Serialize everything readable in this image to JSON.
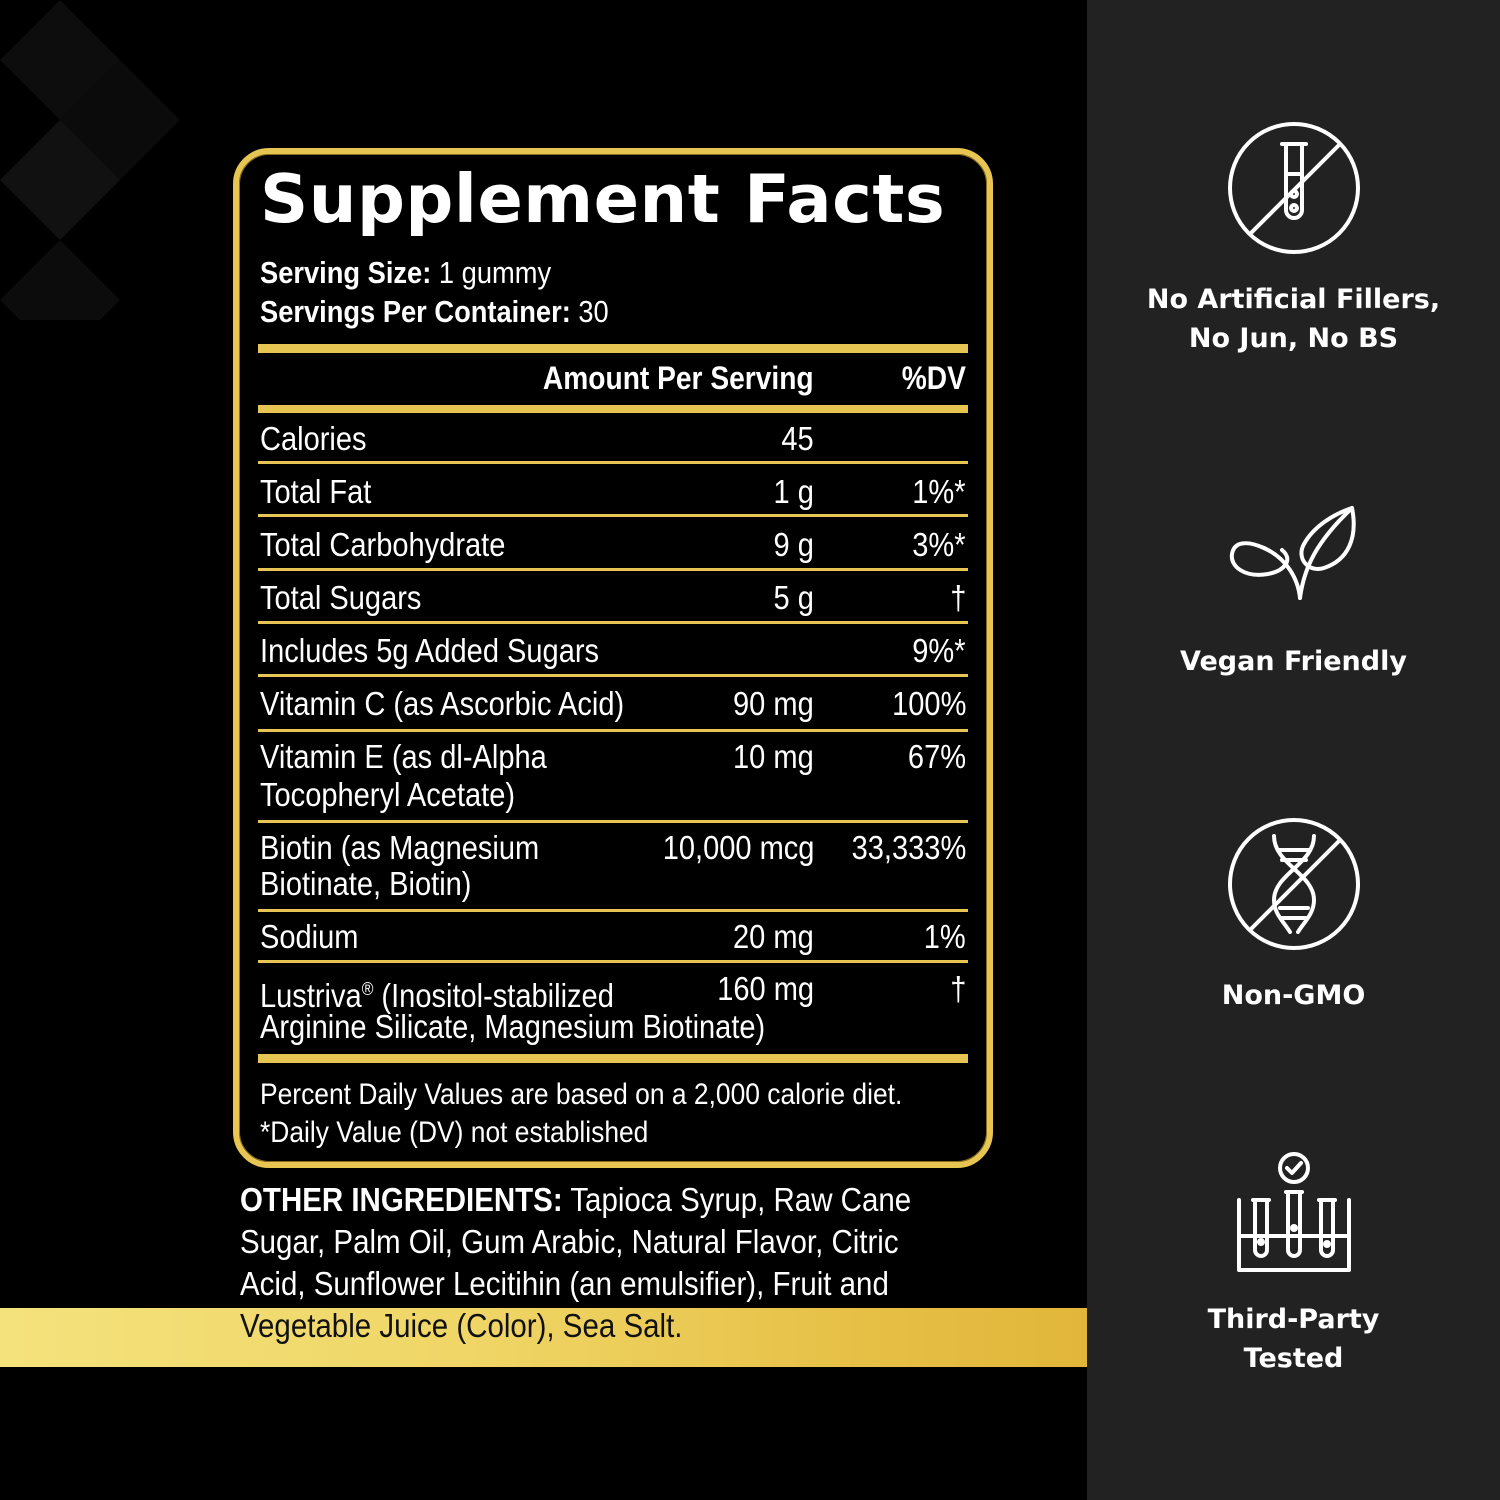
{
  "facts": {
    "title": "Supplement Facts",
    "serving_size_label": "Serving Size:",
    "serving_size_value": " 1 gummy",
    "servings_per_container_label": "Servings Per Container:",
    "servings_per_container_value": " 30",
    "header_amount": "Amount Per Serving",
    "header_dv": "%DV",
    "rows": [
      {
        "name": [
          "Calories"
        ],
        "amount": "45",
        "dv": ""
      },
      {
        "name": [
          "Total Fat"
        ],
        "amount": "1 g",
        "dv": "1%*"
      },
      {
        "name": [
          "Total Carbohydrate"
        ],
        "amount": "9 g",
        "dv": "3%*"
      },
      {
        "name": [
          "Total Sugars"
        ],
        "amount": "5 g",
        "dv": "†"
      },
      {
        "name": [
          "Includes 5g Added Sugars"
        ],
        "amount": "",
        "dv": "9%*"
      },
      {
        "name": [
          "Vitamin C (as Ascorbic Acid)"
        ],
        "amount": "90 mg",
        "dv": "100%"
      },
      {
        "name": [
          "Vitamin E (as dl-Alpha",
          "Tocopheryl Acetate)"
        ],
        "amount": "10 mg",
        "dv": "67%"
      },
      {
        "name": [
          "Biotin (as Magnesium",
          "Biotinate, Biotin)"
        ],
        "amount": "10,000 mcg",
        "dv": "33,333%"
      },
      {
        "name": [
          "Sodium"
        ],
        "amount": "20 mg",
        "dv": "1%"
      },
      {
        "name": [
          "Lustriva",
          "Arginine Silicate, Magnesium Biotinate)"
        ],
        "name_mark": "®",
        "name_rest": " (Inositol-stabilized",
        "amount": "160 mg",
        "dv": "†"
      }
    ],
    "footnote_1": "Percent Daily Values are based on a 2,000 calorie diet.",
    "footnote_2": "*Daily Value (DV) not established"
  },
  "ingredients": {
    "label": "OTHER INGREDIENTS:",
    "line_1": " Tapioca Syrup, Raw Cane",
    "line_2": "Sugar, Palm Oil, Gum Arabic, Natural Flavor, Citric",
    "line_3": "Acid, Sunflower Lecitihin (an emulsifier), Fruit and",
    "line_4": "Vegetable Juice (Color), Sea Salt."
  },
  "features": [
    {
      "icon": "no-test-tube-icon",
      "lines": [
        "No Artificial Fillers,",
        "No Jun, No BS"
      ]
    },
    {
      "icon": "leaf-icon",
      "lines": [
        "Vegan Friendly"
      ]
    },
    {
      "icon": "no-dna-icon",
      "lines": [
        "Non-GMO"
      ]
    },
    {
      "icon": "lab-tested-icon",
      "lines": [
        "Third-Party",
        "Tested"
      ]
    }
  ],
  "colors": {
    "gold": "#e7c553",
    "background": "#000000",
    "sidebar": "#222222"
  }
}
